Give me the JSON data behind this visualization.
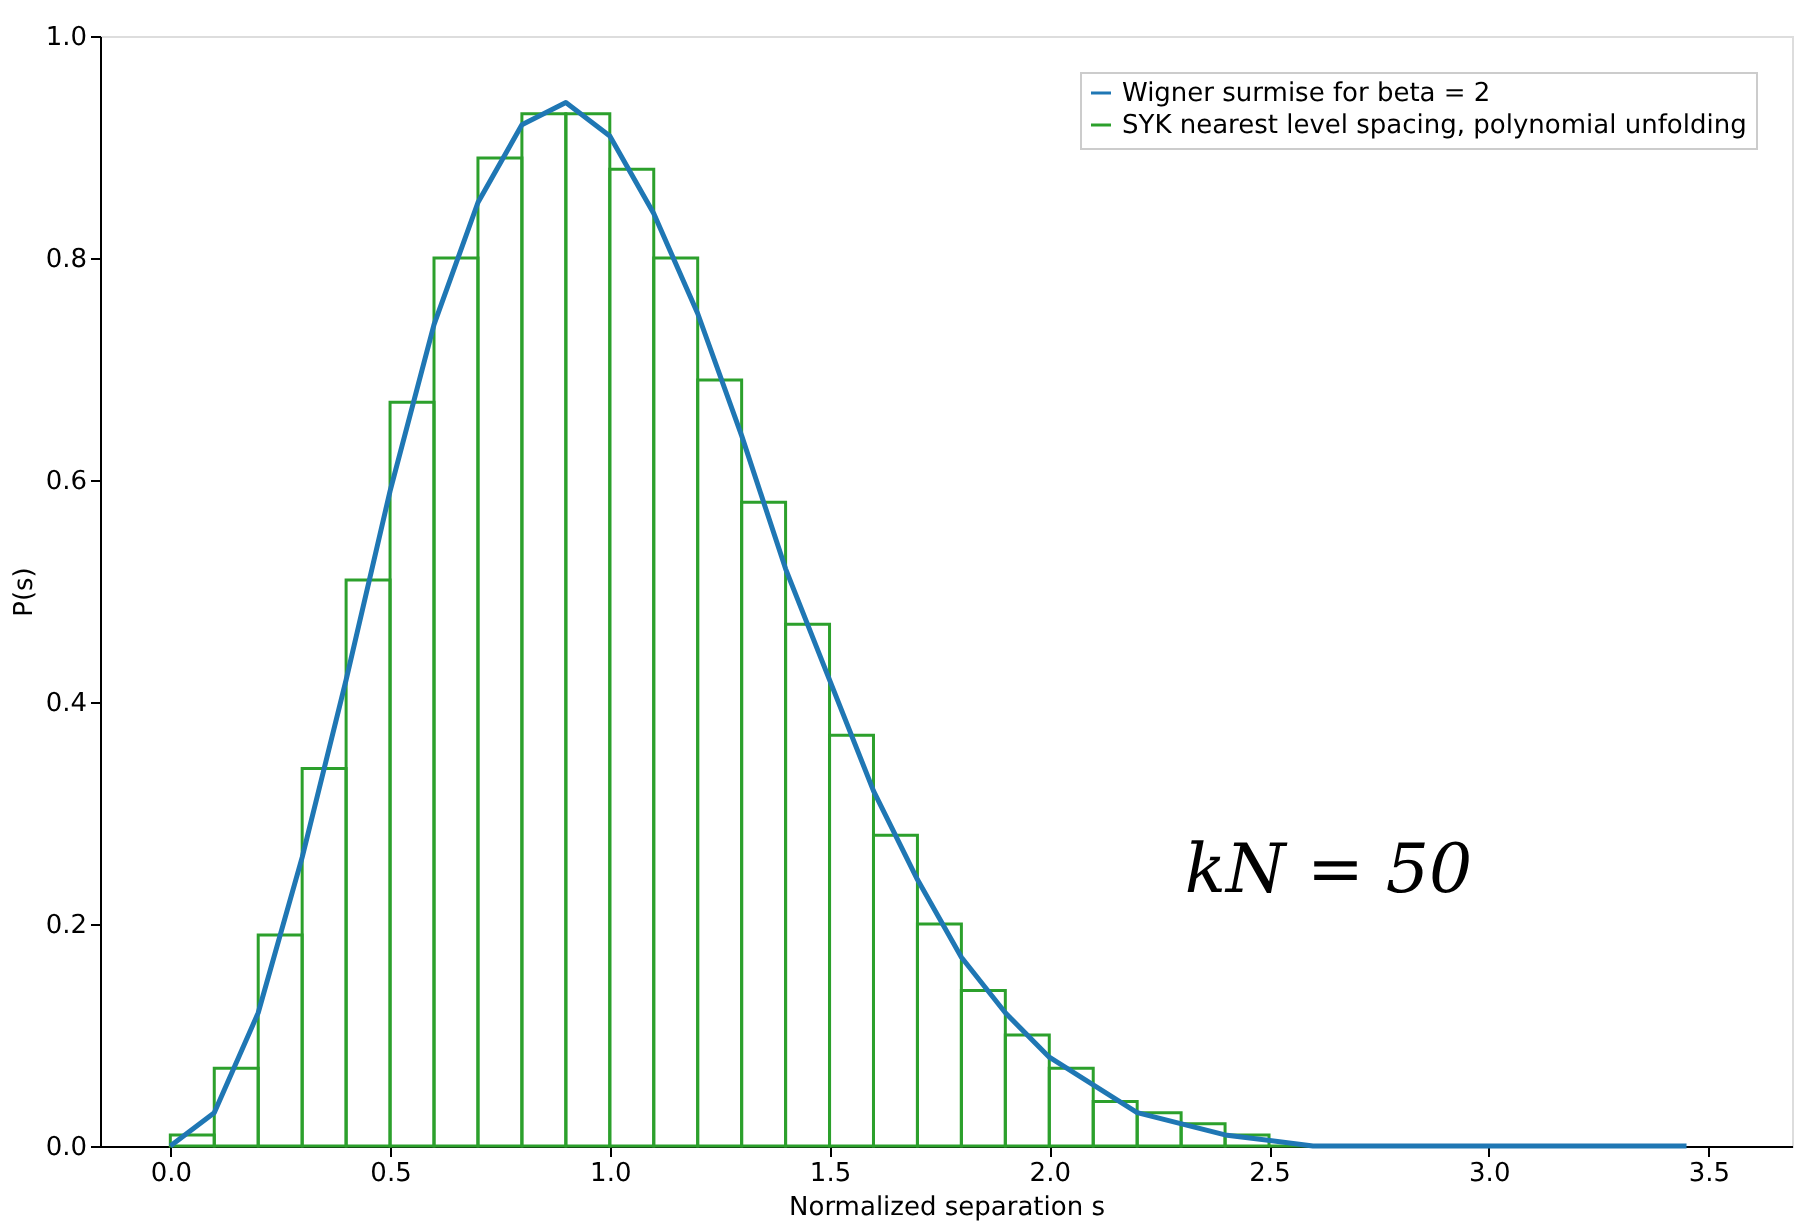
{
  "chart_data": {
    "type": "histogram",
    "xlabel": "Normalized separation s",
    "ylabel": "P(s)",
    "xlim": [
      -0.16,
      3.69
    ],
    "ylim": [
      0,
      1.0
    ],
    "xticks": [
      {
        "value": 0,
        "label": "0.0"
      },
      0.5,
      {
        "value": 1,
        "label": "1.0"
      },
      1.5,
      {
        "value": 2,
        "label": "2.0"
      },
      2.5,
      {
        "value": 3,
        "label": "3.0"
      },
      3.5
    ],
    "yticks": [
      {
        "value": 0,
        "label": "0.0"
      },
      0.2,
      0.4,
      0.6,
      0.8,
      {
        "value": 1,
        "label": "1.0"
      }
    ],
    "grid": false,
    "legend": "top right",
    "annotations": [
      "kN = 50"
    ],
    "series": [
      {
        "name": "Wigner surmise for beta = 2",
        "type": "line",
        "color": "#1f77b4",
        "x": [
          0.0,
          0.1,
          0.2,
          0.3,
          0.4,
          0.5,
          0.6,
          0.7,
          0.8,
          0.9,
          1.0,
          1.1,
          1.2,
          1.3,
          1.4,
          1.5,
          1.6,
          1.7,
          1.8,
          1.9,
          2.0,
          2.2,
          2.4,
          2.6,
          2.8,
          3.0,
          3.45
        ],
        "values": [
          0.0,
          0.03,
          0.12,
          0.26,
          0.42,
          0.59,
          0.74,
          0.85,
          0.92,
          0.94,
          0.91,
          0.84,
          0.75,
          0.64,
          0.52,
          0.42,
          0.32,
          0.24,
          0.17,
          0.12,
          0.08,
          0.03,
          0.01,
          0.0,
          0.0,
          0.0,
          0.0
        ]
      },
      {
        "name": "SYK nearest level spacing, polynomial unfolding",
        "color": "#2ca02c",
        "bins": [
          0.0,
          0.1,
          0.2,
          0.3,
          0.4,
          0.5,
          0.6,
          0.7,
          0.8,
          0.9,
          1.0,
          1.1,
          1.2,
          1.3,
          1.4,
          1.5,
          1.6,
          1.7,
          1.8,
          1.9,
          2.0,
          2.1,
          2.2,
          2.3,
          2.4,
          2.5,
          2.6
        ],
        "values": [
          0.01,
          0.07,
          0.19,
          0.34,
          0.51,
          0.67,
          0.8,
          0.89,
          0.93,
          0.93,
          0.88,
          0.8,
          0.69,
          0.58,
          0.47,
          0.37,
          0.28,
          0.2,
          0.14,
          0.1,
          0.07,
          0.04,
          0.03,
          0.02,
          0.01,
          0.0
        ]
      }
    ]
  }
}
